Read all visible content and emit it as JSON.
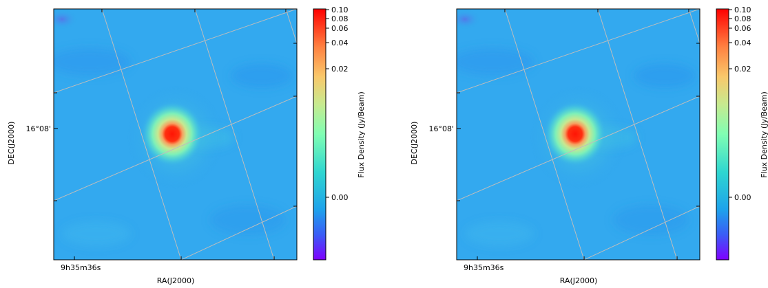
{
  "panels": [
    {
      "xlabel": "RA(J2000)",
      "ylabel": "DEC(J2000)",
      "ra_tick": "9h35m36s",
      "dec_tick": "16°08'",
      "colorbar_label": "Flux Density (Jy/Beam)",
      "colorbar_ticks": [
        "0.10",
        "0.08",
        "0.06",
        "0.04",
        "0.02",
        "0.00"
      ]
    },
    {
      "xlabel": "RA(J2000)",
      "ylabel": "DEC(J2000)",
      "ra_tick": "9h35m36s",
      "dec_tick": "16°08'",
      "colorbar_label": "Flux Density (Jy/Beam)",
      "colorbar_ticks": [
        "0.10",
        "0.08",
        "0.06",
        "0.04",
        "0.02",
        "0.00"
      ]
    }
  ],
  "colormap": "rainbow",
  "colors": {
    "background": "#33a9ef",
    "peak": "#ff1a0a",
    "grid": "#bdbdbd"
  }
}
